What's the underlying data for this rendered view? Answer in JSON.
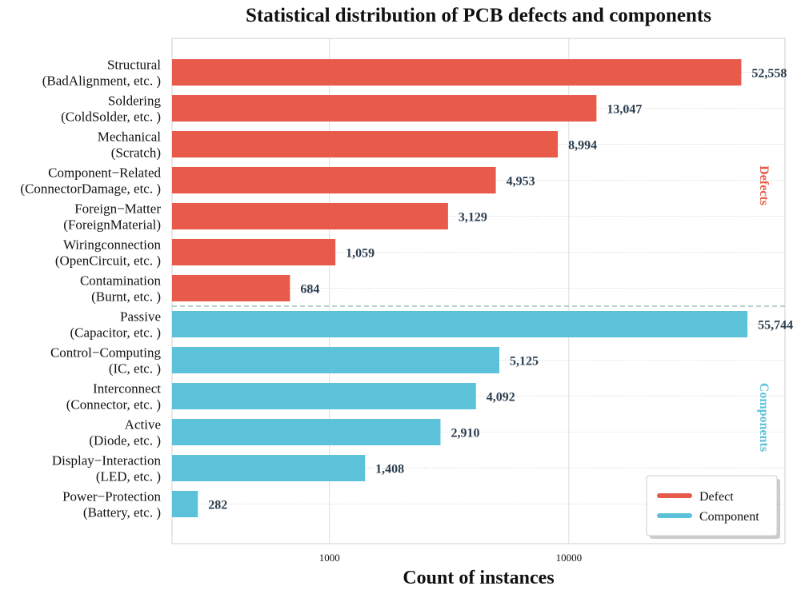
{
  "chart_data": {
    "type": "bar",
    "orientation": "horizontal",
    "title": "Statistical distribution of PCB defects and components",
    "xlabel": "Count of instances",
    "ylabel": "",
    "xscale": "log",
    "xlim": [
      220,
      80000
    ],
    "xticks": [
      {
        "value": 1000,
        "label": "1000"
      },
      {
        "value": 10000,
        "label": "10000"
      }
    ],
    "grid": true,
    "legend_position": "bottom-right",
    "colors": {
      "defect": "#e85a4a",
      "component": "#5bc2d9",
      "divider": "#8fb8a8"
    },
    "legend": [
      {
        "name": "Defect",
        "color": "#e85a4a"
      },
      {
        "name": "Component",
        "color": "#5bc2d9"
      }
    ],
    "sections": [
      {
        "label": "Defects",
        "color": "#e85a4a"
      },
      {
        "label": "Components",
        "color": "#5bc2d9"
      }
    ],
    "categories": [
      {
        "line1": "Structural",
        "line2": "(BadAlignment, etc. )",
        "value": 52558,
        "value_label": "52,558",
        "group": "defect"
      },
      {
        "line1": "Soldering",
        "line2": "(ColdSolder, etc. )",
        "value": 13047,
        "value_label": "13,047",
        "group": "defect"
      },
      {
        "line1": "Mechanical",
        "line2": "(Scratch)",
        "value": 8994,
        "value_label": "8,994",
        "group": "defect"
      },
      {
        "line1": "Component−Related",
        "line2": "(ConnectorDamage, etc. )",
        "value": 4953,
        "value_label": "4,953",
        "group": "defect"
      },
      {
        "line1": "Foreign−Matter",
        "line2": "(ForeignMaterial)",
        "value": 3129,
        "value_label": "3,129",
        "group": "defect"
      },
      {
        "line1": "Wiringconnection",
        "line2": "(OpenCircuit, etc. )",
        "value": 1059,
        "value_label": "1,059",
        "group": "defect"
      },
      {
        "line1": "Contamination",
        "line2": "(Burnt, etc. )",
        "value": 684,
        "value_label": "684",
        "group": "defect"
      },
      {
        "line1": "Passive",
        "line2": "(Capacitor, etc. )",
        "value": 55744,
        "value_label": "55,744",
        "group": "component"
      },
      {
        "line1": "Control−Computing",
        "line2": "(IC, etc. )",
        "value": 5125,
        "value_label": "5,125",
        "group": "component"
      },
      {
        "line1": "Interconnect",
        "line2": "(Connector, etc. )",
        "value": 4092,
        "value_label": "4,092",
        "group": "component"
      },
      {
        "line1": "Active",
        "line2": "(Diode, etc. )",
        "value": 2910,
        "value_label": "2,910",
        "group": "component"
      },
      {
        "line1": "Display−Interaction",
        "line2": "(LED, etc. )",
        "value": 1408,
        "value_label": "1,408",
        "group": "component"
      },
      {
        "line1": "Power−Protection",
        "line2": "(Battery, etc. )",
        "value": 282,
        "value_label": "282",
        "group": "component"
      }
    ]
  }
}
